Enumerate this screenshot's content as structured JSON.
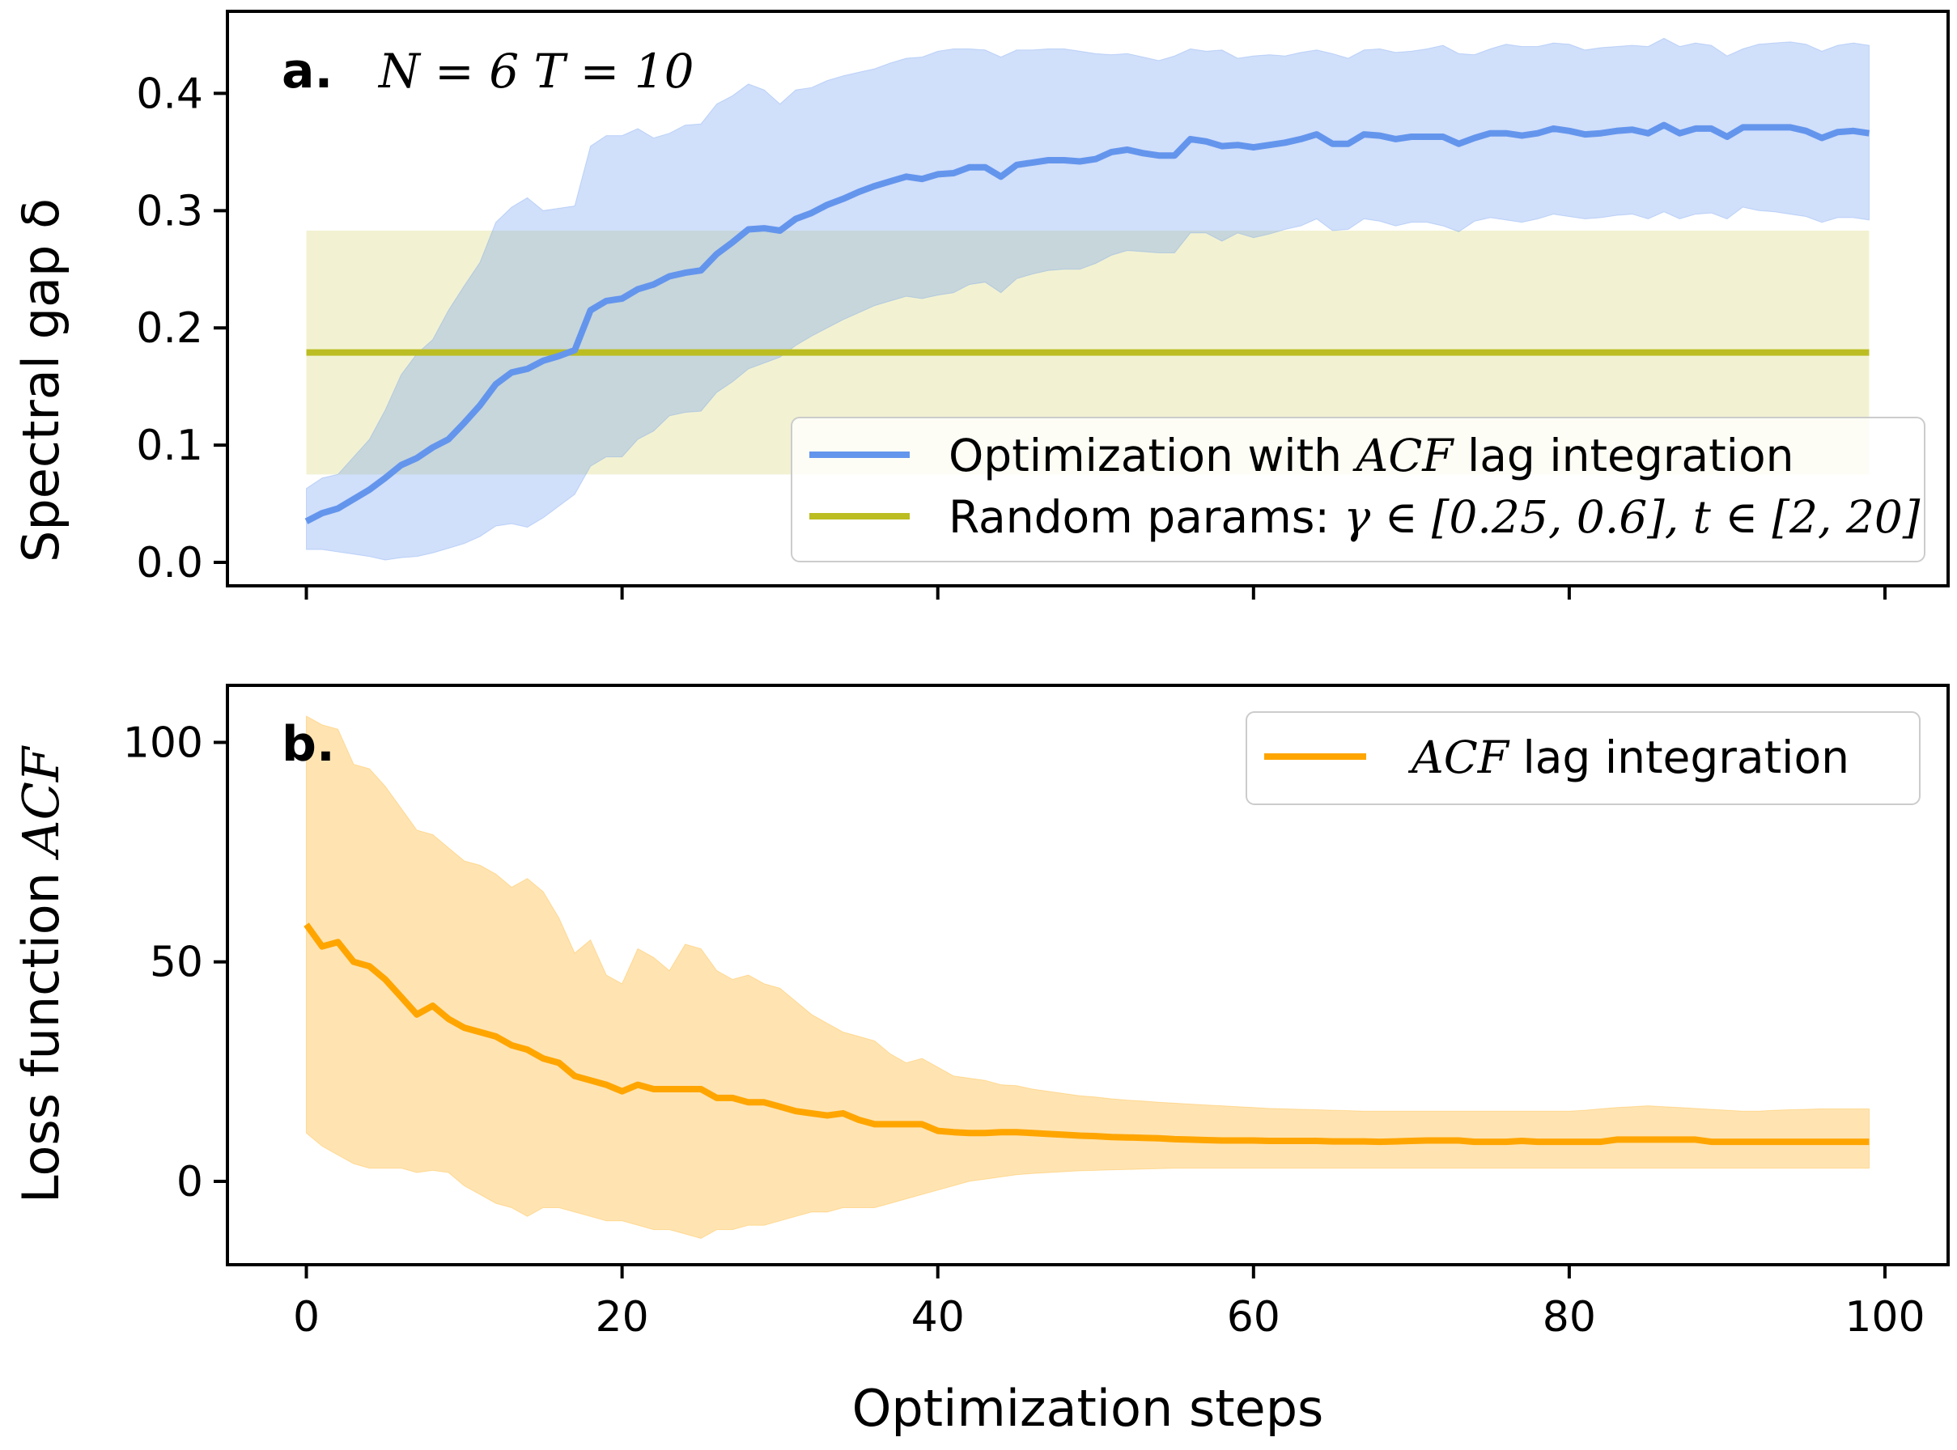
{
  "chart_data": [
    {
      "type": "line",
      "panel_label": "a.",
      "annotation": "N = 6   T = 10",
      "ylabel": "Spectral gap δ",
      "xlim": [
        -5,
        104
      ],
      "ylim": [
        -0.02,
        0.47
      ],
      "x_ticks": [
        0,
        20,
        40,
        60,
        80,
        100
      ],
      "y_ticks": [
        0.0,
        0.1,
        0.2,
        0.3,
        0.4
      ],
      "y_tick_labels": [
        "0.0",
        "0.1",
        "0.2",
        "0.3",
        "0.4"
      ],
      "legend_position": "lower-right",
      "series": [
        {
          "name": "Optimization with ACF lag integration",
          "legend_prefix": "Optimization with ",
          "legend_math": "ACF",
          "legend_suffix": " lag integration",
          "color": "#6495ed",
          "band_color": "#6495ed",
          "x": [
            0,
            1,
            2,
            3,
            4,
            5,
            6,
            7,
            8,
            9,
            10,
            11,
            12,
            13,
            14,
            15,
            16,
            17,
            18,
            19,
            20,
            21,
            22,
            23,
            24,
            25,
            26,
            27,
            28,
            29,
            30,
            31,
            32,
            33,
            34,
            35,
            36,
            37,
            38,
            39,
            40,
            41,
            42,
            43,
            44,
            45,
            46,
            47,
            48,
            49,
            50,
            51,
            52,
            53,
            54,
            55,
            56,
            57,
            58,
            59,
            60,
            61,
            62,
            63,
            64,
            65,
            66,
            67,
            68,
            69,
            70,
            71,
            72,
            73,
            74,
            75,
            76,
            77,
            78,
            79,
            80,
            81,
            82,
            83,
            84,
            85,
            86,
            87,
            88,
            89,
            90,
            91,
            92,
            93,
            94,
            95,
            96,
            97,
            98,
            99
          ],
          "mean": [
            0.035,
            0.042,
            0.046,
            0.054,
            0.062,
            0.072,
            0.083,
            0.089,
            0.098,
            0.105,
            0.119,
            0.134,
            0.152,
            0.162,
            0.165,
            0.172,
            0.176,
            0.181,
            0.215,
            0.223,
            0.225,
            0.233,
            0.237,
            0.244,
            0.247,
            0.249,
            0.263,
            0.273,
            0.284,
            0.285,
            0.283,
            0.293,
            0.298,
            0.305,
            0.31,
            0.316,
            0.321,
            0.325,
            0.329,
            0.327,
            0.331,
            0.332,
            0.337,
            0.337,
            0.329,
            0.339,
            0.341,
            0.343,
            0.343,
            0.342,
            0.344,
            0.35,
            0.352,
            0.349,
            0.347,
            0.347,
            0.361,
            0.359,
            0.355,
            0.356,
            0.354,
            0.356,
            0.358,
            0.361,
            0.365,
            0.357,
            0.357,
            0.365,
            0.364,
            0.361,
            0.363,
            0.363,
            0.363,
            0.357,
            0.362,
            0.366,
            0.366,
            0.364,
            0.366,
            0.37,
            0.368,
            0.365,
            0.366,
            0.368,
            0.369,
            0.366,
            0.373,
            0.366,
            0.37,
            0.37,
            0.363,
            0.371,
            0.371,
            0.371,
            0.371,
            0.368,
            0.362,
            0.367,
            0.368,
            0.366
          ],
          "upper": [
            0.063,
            0.072,
            0.075,
            0.09,
            0.105,
            0.13,
            0.16,
            0.178,
            0.19,
            0.215,
            0.236,
            0.256,
            0.29,
            0.303,
            0.311,
            0.3,
            0.302,
            0.304,
            0.355,
            0.364,
            0.364,
            0.37,
            0.362,
            0.366,
            0.373,
            0.374,
            0.391,
            0.398,
            0.408,
            0.403,
            0.391,
            0.403,
            0.405,
            0.411,
            0.415,
            0.418,
            0.421,
            0.426,
            0.43,
            0.431,
            0.436,
            0.438,
            0.438,
            0.437,
            0.431,
            0.437,
            0.437,
            0.438,
            0.438,
            0.436,
            0.434,
            0.433,
            0.434,
            0.431,
            0.428,
            0.432,
            0.438,
            0.436,
            0.437,
            0.43,
            0.432,
            0.433,
            0.432,
            0.435,
            0.437,
            0.434,
            0.43,
            0.437,
            0.438,
            0.435,
            0.436,
            0.438,
            0.441,
            0.434,
            0.433,
            0.438,
            0.442,
            0.44,
            0.44,
            0.443,
            0.442,
            0.437,
            0.439,
            0.44,
            0.441,
            0.44,
            0.447,
            0.44,
            0.443,
            0.441,
            0.432,
            0.438,
            0.442,
            0.443,
            0.444,
            0.442,
            0.436,
            0.441,
            0.443,
            0.441
          ],
          "lower": [
            0.011,
            0.011,
            0.009,
            0.007,
            0.005,
            0.002,
            0.004,
            0.005,
            0.008,
            0.012,
            0.016,
            0.022,
            0.031,
            0.033,
            0.03,
            0.038,
            0.048,
            0.058,
            0.082,
            0.09,
            0.09,
            0.105,
            0.112,
            0.125,
            0.128,
            0.129,
            0.145,
            0.154,
            0.165,
            0.17,
            0.175,
            0.185,
            0.193,
            0.2,
            0.207,
            0.213,
            0.219,
            0.223,
            0.227,
            0.225,
            0.228,
            0.23,
            0.237,
            0.239,
            0.23,
            0.242,
            0.246,
            0.249,
            0.25,
            0.25,
            0.255,
            0.262,
            0.266,
            0.265,
            0.264,
            0.264,
            0.281,
            0.281,
            0.274,
            0.281,
            0.277,
            0.28,
            0.284,
            0.287,
            0.293,
            0.283,
            0.284,
            0.293,
            0.291,
            0.287,
            0.29,
            0.29,
            0.287,
            0.282,
            0.291,
            0.294,
            0.292,
            0.29,
            0.293,
            0.297,
            0.295,
            0.293,
            0.294,
            0.296,
            0.297,
            0.293,
            0.299,
            0.293,
            0.297,
            0.298,
            0.293,
            0.303,
            0.3,
            0.299,
            0.297,
            0.295,
            0.29,
            0.294,
            0.294,
            0.292
          ]
        },
        {
          "name": "Random params",
          "legend_prefix": "Random params: ",
          "legend_math": "γ ∈ [0.25, 0.6], t ∈ [2, 20]",
          "color": "#bcbd22",
          "band_color": "#bcbd22",
          "x_range": [
            0,
            99
          ],
          "mean": 0.179,
          "upper": 0.283,
          "lower": 0.075
        }
      ]
    },
    {
      "type": "line",
      "panel_label": "b.",
      "ylabel_prefix": "Loss function ",
      "ylabel_math": "ACF",
      "xlabel": "Optimization steps",
      "xlim": [
        -5,
        104
      ],
      "ylim": [
        -19,
        113
      ],
      "x_ticks": [
        0,
        20,
        40,
        60,
        80,
        100
      ],
      "x_tick_labels": [
        "0",
        "20",
        "40",
        "60",
        "80",
        "100"
      ],
      "y_ticks": [
        0,
        50,
        100
      ],
      "y_tick_labels": [
        "0",
        "50",
        "100"
      ],
      "legend_position": "upper-right",
      "series": [
        {
          "name": "ACF lag integration",
          "legend_math": "ACF",
          "legend_suffix": " lag integration",
          "color": "#ffa500",
          "band_color": "#ffa500",
          "x": [
            0,
            1,
            2,
            3,
            4,
            5,
            6,
            7,
            8,
            9,
            10,
            11,
            12,
            13,
            14,
            15,
            16,
            17,
            18,
            19,
            20,
            21,
            22,
            23,
            24,
            25,
            26,
            27,
            28,
            29,
            30,
            31,
            32,
            33,
            34,
            35,
            36,
            37,
            38,
            39,
            40,
            41,
            42,
            43,
            44,
            45,
            46,
            47,
            48,
            49,
            50,
            51,
            52,
            53,
            54,
            55,
            56,
            57,
            58,
            59,
            60,
            61,
            62,
            63,
            64,
            65,
            66,
            67,
            68,
            69,
            70,
            71,
            72,
            73,
            74,
            75,
            76,
            77,
            78,
            79,
            80,
            81,
            82,
            83,
            84,
            85,
            86,
            87,
            88,
            89,
            90,
            91,
            92,
            93,
            94,
            95,
            96,
            97,
            98,
            99
          ],
          "mean": [
            58.5,
            53.5,
            54.5,
            50,
            49,
            46,
            42,
            38,
            40,
            37,
            35,
            34,
            33,
            31,
            30,
            28,
            27,
            24,
            23,
            22,
            20.5,
            22,
            21,
            21,
            21,
            21,
            19,
            19,
            18,
            18,
            17,
            16,
            15.5,
            15,
            15.5,
            14,
            13,
            13,
            13,
            13,
            11.5,
            11.2,
            11,
            11,
            11.2,
            11.2,
            11,
            10.8,
            10.6,
            10.4,
            10.3,
            10.1,
            10,
            9.9,
            9.8,
            9.6,
            9.5,
            9.4,
            9.3,
            9.3,
            9.3,
            9.2,
            9.2,
            9.2,
            9.2,
            9.1,
            9.1,
            9.1,
            9,
            9.1,
            9.2,
            9.3,
            9.3,
            9.3,
            9,
            9,
            9,
            9.2,
            9,
            9,
            9,
            9,
            9,
            9.5,
            9.5,
            9.5,
            9.5,
            9.5,
            9.5,
            9,
            9,
            9,
            9,
            9,
            9,
            9,
            9,
            9,
            9,
            9
          ],
          "upper": [
            106,
            104,
            103,
            95,
            94,
            90,
            85,
            80,
            79,
            76,
            73,
            72,
            70,
            67,
            69,
            66,
            60,
            52,
            55,
            47,
            45,
            53,
            51,
            48,
            54,
            53,
            48,
            46,
            47,
            45,
            44,
            41,
            38,
            36,
            34,
            33,
            32,
            29,
            27,
            28,
            26,
            24,
            23.5,
            23,
            22,
            21.8,
            21,
            20.5,
            20,
            19.5,
            19.2,
            18.8,
            18.5,
            18.3,
            18,
            17.8,
            17.6,
            17.4,
            17.2,
            17,
            16.8,
            16.6,
            16.5,
            16.4,
            16.3,
            16.2,
            16.1,
            16,
            16,
            16,
            16,
            16,
            16,
            16,
            16,
            16,
            16,
            16,
            16,
            16,
            16,
            16.2,
            16.5,
            16.8,
            17,
            17.2,
            17,
            16.8,
            16.6,
            16.4,
            16.2,
            16,
            16,
            16.2,
            16.3,
            16.4,
            16.5,
            16.5,
            16.5,
            16.5
          ],
          "lower": [
            11,
            8,
            6,
            4,
            3,
            3,
            3,
            2,
            2.5,
            2,
            -1,
            -3,
            -5,
            -6,
            -8,
            -6,
            -6,
            -7,
            -8,
            -9,
            -9,
            -10,
            -11,
            -11,
            -12,
            -13,
            -11,
            -11,
            -10,
            -10,
            -9,
            -8,
            -7,
            -7,
            -6,
            -6,
            -6,
            -5,
            -4,
            -3,
            -2,
            -1,
            0,
            0.5,
            1,
            1.5,
            1.8,
            2,
            2.2,
            2.4,
            2.5,
            2.6,
            2.7,
            2.8,
            2.9,
            3,
            3,
            3,
            3,
            3,
            3,
            3,
            3,
            3,
            3,
            3,
            3,
            3,
            3,
            3,
            3,
            3,
            3,
            3,
            3,
            3,
            3,
            3,
            3,
            3,
            3,
            3,
            3,
            3,
            3,
            3,
            3,
            3,
            3,
            3,
            3,
            3,
            3,
            3,
            3,
            3,
            3,
            3,
            3,
            3
          ]
        }
      ]
    }
  ]
}
